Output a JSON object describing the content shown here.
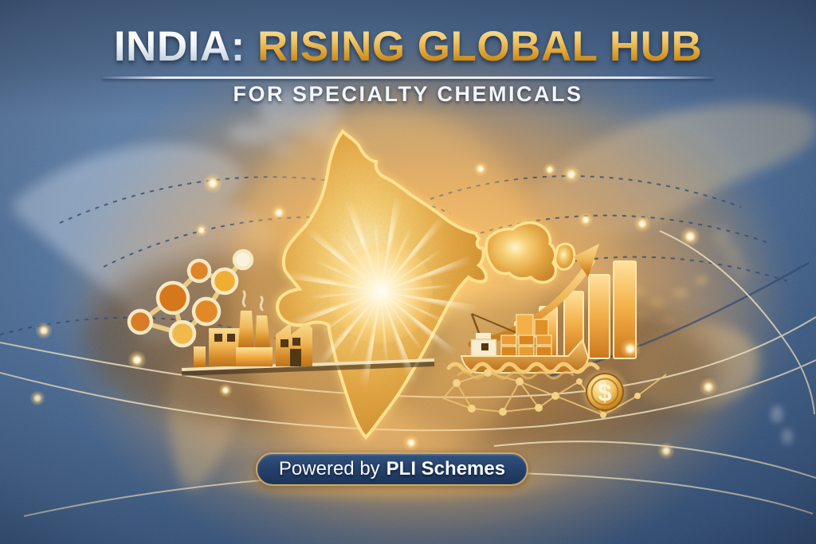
{
  "title": {
    "prefix": "INDIA:",
    "highlight": "RISING GLOBAL HUB",
    "subtitle": "FOR SPECIALTY CHEMICALS"
  },
  "banner": {
    "prefix": "Powered by",
    "emphasis": "PLI Schemes"
  },
  "coin": {
    "symbol": "$"
  },
  "illustration": {
    "subject": "Stylized world map with a glowing golden map of India at center, surrounded by chemical-industry and trade icons",
    "elements": [
      "world-map-background",
      "trade-route-arcs",
      "glow-nodes",
      "india-map",
      "starburst",
      "molecule-icon",
      "factory-icon",
      "cargo-ship-icon",
      "shipping-containers",
      "growth-bar-chart-icon",
      "rising-arrow-icon",
      "dollar-coin-icon",
      "network-mesh-icon"
    ],
    "growth_chart": {
      "type": "bar",
      "bars_relative_heights": [
        0.38,
        0.53,
        0.69,
        0.86,
        1.0
      ],
      "trend": "rising"
    },
    "colors": {
      "sky_blue": "#54759E",
      "deep_blue": "#34547E",
      "map_tan": "#C7A670",
      "india_gold": "#E8AE45",
      "glow_yellow": "#FFE08A",
      "icon_gold": "#EFB44F",
      "deep_gold": "#C07818",
      "banner_navy": "#24406B",
      "banner_border": "#C9A76B",
      "title_gold_top": "#F5D98C",
      "title_gold_bottom": "#C8860F",
      "title_white": "#F5F7FA",
      "arc_navy": "#2C4869",
      "arc_cream": "#F2E4C2"
    }
  }
}
